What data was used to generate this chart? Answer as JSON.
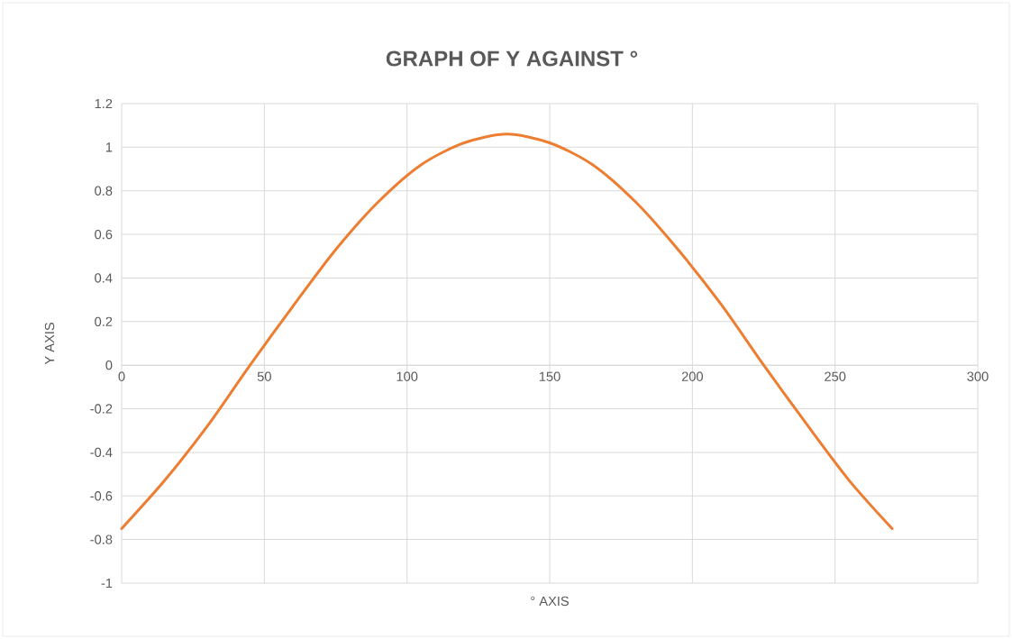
{
  "chart_data": {
    "type": "line",
    "title": "GRAPH OF Y AGAINST °",
    "xlabel": "° AXIS",
    "ylabel": "Y AXIS",
    "x": [
      0,
      15,
      30,
      45,
      60,
      75,
      90,
      105,
      120,
      135,
      150,
      165,
      180,
      195,
      210,
      225,
      240,
      255,
      270
    ],
    "series": [
      {
        "color": "#ed7d31",
        "values": [
          -0.75,
          -0.53,
          -0.28,
          0,
          0.27,
          0.53,
          0.75,
          0.92,
          1.02,
          1.06,
          1.02,
          0.92,
          0.75,
          0.53,
          0.28,
          0,
          -0.27,
          -0.53,
          -0.75
        ]
      }
    ],
    "xlim": [
      0,
      300
    ],
    "xticks": [
      0,
      50,
      100,
      150,
      200,
      250,
      300
    ],
    "ylim": [
      -1,
      1.2
    ],
    "yticks": [
      -1,
      -0.8,
      -0.6,
      -0.4,
      -0.2,
      0,
      0.2,
      0.4,
      0.6,
      0.8,
      1,
      1.2
    ],
    "grid": true,
    "marker": "none",
    "line_style": "solid"
  }
}
